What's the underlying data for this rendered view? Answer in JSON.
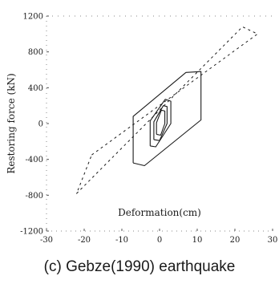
{
  "caption": "(c) Gebze(1990) earthquake",
  "chart_data": {
    "type": "line",
    "xlabel": "Deformation(cm)",
    "ylabel": "Restoring force (kN)",
    "xlim": [
      -30,
      30
    ],
    "ylim": [
      -1200,
      1200
    ],
    "xticks": [
      "-30",
      "-20",
      "-10",
      "0",
      "10",
      "20",
      "30"
    ],
    "yticks": [
      "-1200",
      "-800",
      "-400",
      "0",
      "400",
      "800",
      "1200"
    ],
    "grid": false,
    "series": [
      {
        "style": "dashed",
        "x": [
          -18,
          26,
          22,
          -22,
          -18
        ],
        "y": [
          -350,
          1000,
          1080,
          -780,
          -350
        ]
      },
      {
        "style": "solid",
        "x": [
          -7,
          -4,
          11,
          11,
          7,
          -7,
          -7
        ],
        "y": [
          -440,
          -470,
          40,
          580,
          570,
          80,
          -440
        ]
      },
      {
        "style": "solid",
        "x": [
          -2.5,
          -1,
          3,
          3,
          1.5,
          -2.5,
          -2.5
        ],
        "y": [
          -250,
          -260,
          0,
          250,
          270,
          30,
          -250
        ]
      },
      {
        "style": "solid",
        "x": [
          -1.5,
          0,
          2,
          2,
          1,
          -1.5,
          -1.5
        ],
        "y": [
          -180,
          -190,
          0,
          190,
          200,
          20,
          -180
        ]
      },
      {
        "style": "solid",
        "x": [
          -0.8,
          0.3,
          1.4,
          1.4,
          0.5,
          -0.8,
          -0.8
        ],
        "y": [
          -120,
          -130,
          0,
          140,
          150,
          10,
          -120
        ]
      }
    ]
  }
}
